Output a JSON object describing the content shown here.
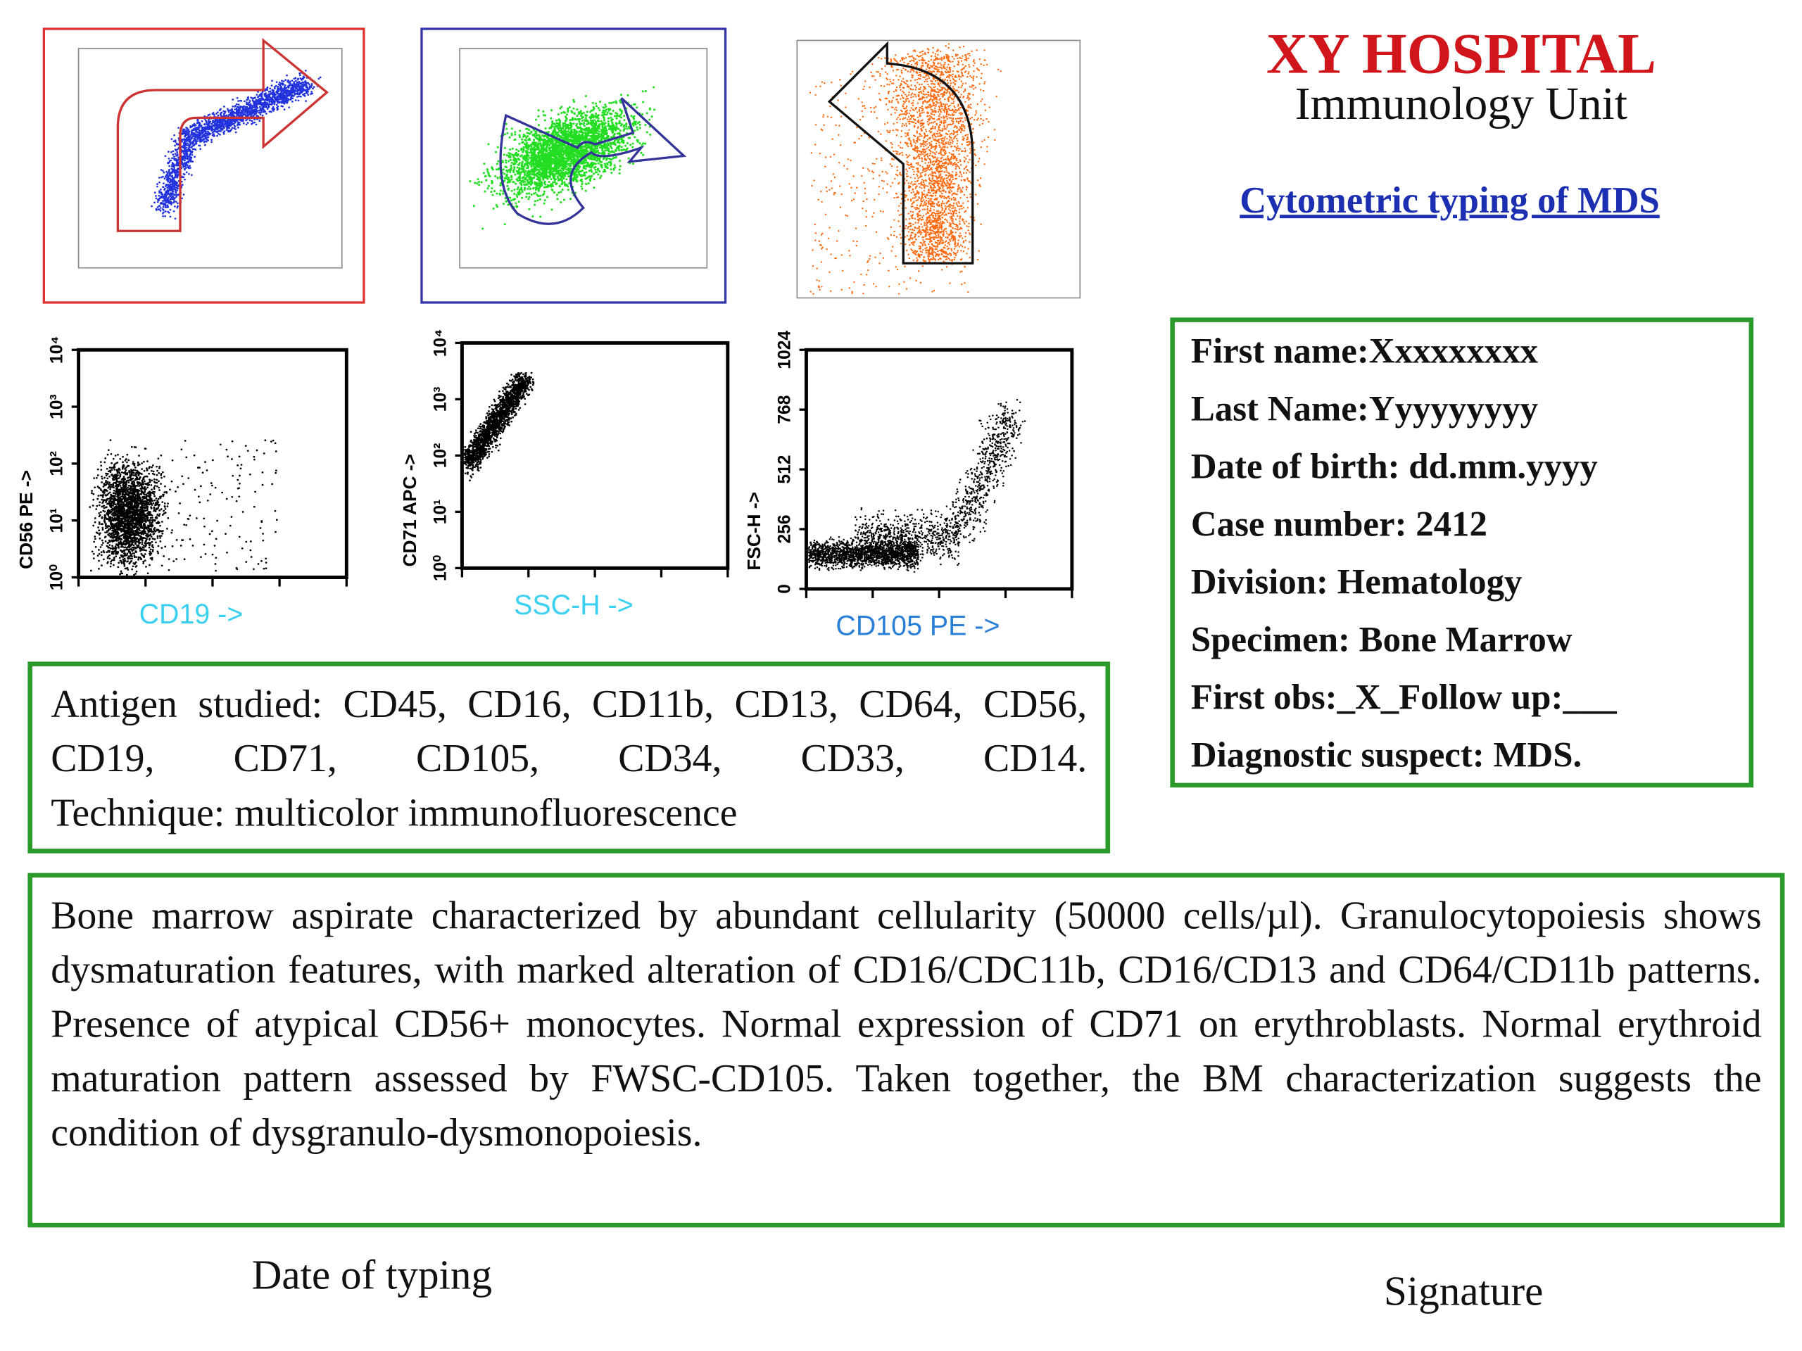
{
  "header": {
    "title": "XY HOSPITAL",
    "subtitle": "Immunology Unit",
    "link": "Cytometric typing of MDS"
  },
  "patient": [
    "First name:Xxxxxxxxx",
    "Last Name:Yyyyyyyyy",
    "Date of birth: dd.mm.yyyy",
    "Case number: 2412",
    "Division: Hematology",
    "Specimen: Bone Marrow",
    "First obs:_X_Follow up:___",
    "Diagnostic suspect: MDS."
  ],
  "antigens": {
    "studied": "Antigen studied: CD45, CD16, CD11b, CD13, CD64, CD56, CD19, CD71, CD105, CD34, CD33, CD14.",
    "technique": "Technique: multicolor immunofluorescence"
  },
  "report": "Bone marrow aspirate characterized by abundant cellularity (50000 cells/µl). Granulocytopoiesis shows dysmaturation features, with marked alteration of CD16/CDC11b, CD16/CD13 and CD64/CD11b patterns. Presence of atypical CD56+ monocytes. Normal expression of CD71 on erythroblasts. Normal erythroid maturation pattern assessed by FWSC-CD105. Taken together, the BM characterization suggests the condition of dysgranulo-dysmonopoiesis.",
  "plots": [
    {
      "x_label": "CD19 ->",
      "y_label": "CD56 PE ->",
      "yticks": [
        "10⁰",
        "10¹",
        "10²",
        "10³",
        "10⁴"
      ]
    },
    {
      "x_label": "SSC-H ->",
      "y_label": "CD71 APC ->",
      "yticks": [
        "10⁰",
        "10¹",
        "10²",
        "10³",
        "10⁴"
      ]
    },
    {
      "x_label": "CD105 PE ->",
      "y_label": "FSC-H ->",
      "yticks": [
        0,
        256,
        512,
        768,
        1024
      ]
    }
  ],
  "footer": {
    "date": "Date of typing",
    "signature": "Signature"
  }
}
